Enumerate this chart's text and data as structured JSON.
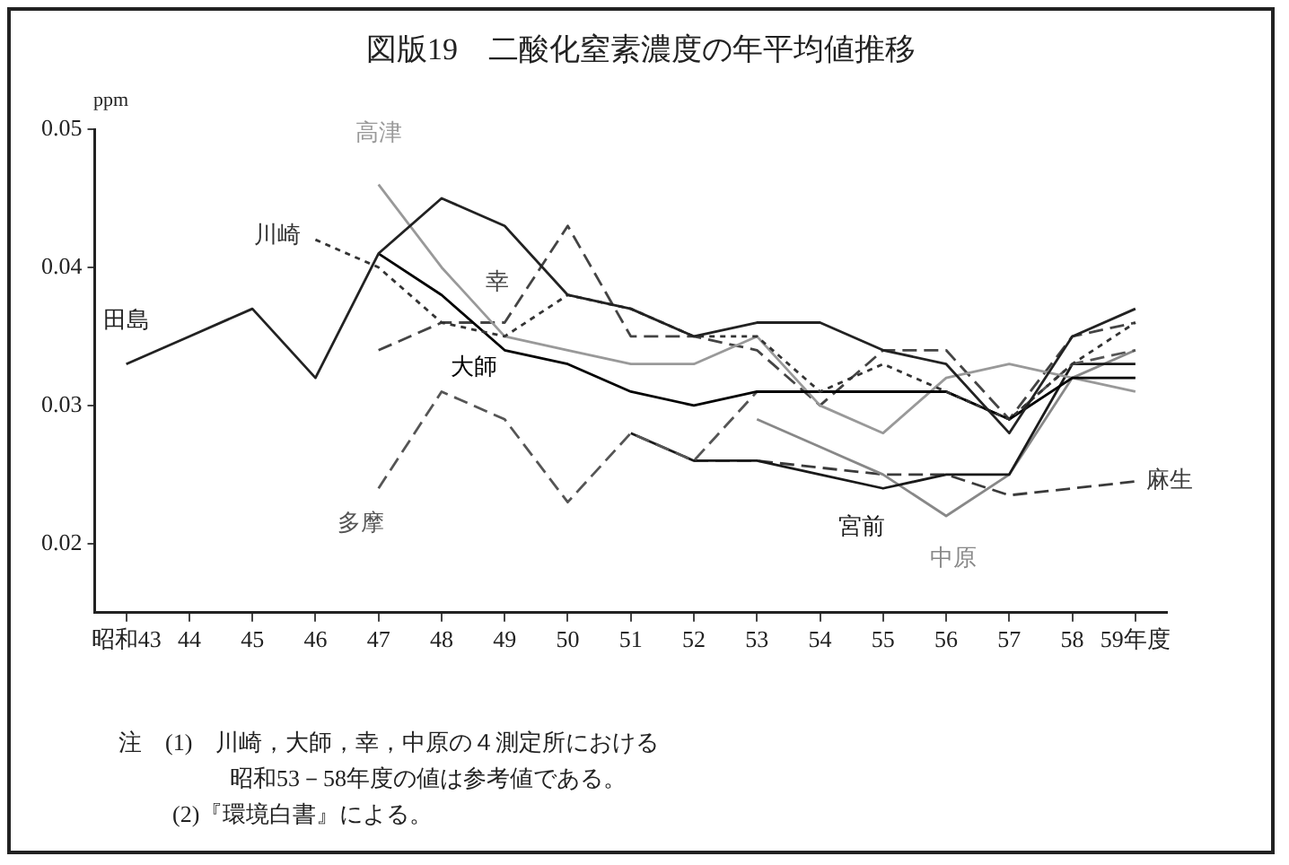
{
  "chart_data": {
    "type": "line",
    "title": "図版19　二酸化窒素濃度の年平均値推移",
    "ylabel": "ppm",
    "categories": [
      "昭和43",
      "44",
      "45",
      "46",
      "47",
      "48",
      "49",
      "50",
      "51",
      "52",
      "53",
      "54",
      "55",
      "56",
      "57",
      "58",
      "59年度"
    ],
    "ylim": [
      0.015,
      0.05
    ],
    "yticks": [
      0.02,
      0.03,
      0.04,
      0.05
    ],
    "grid": false,
    "legend": false,
    "marker": "none",
    "series": [
      {
        "name": "田島",
        "color": "#222222",
        "line_style": "solid",
        "values": [
          0.033,
          0.035,
          0.037,
          0.032,
          0.041,
          0.045,
          0.043,
          0.038,
          0.037,
          0.035,
          0.036,
          0.036,
          0.034,
          0.033,
          0.028,
          0.035,
          0.037
        ]
      },
      {
        "name": "川崎",
        "color": "#333333",
        "line_style": "dotted",
        "values": [
          null,
          null,
          null,
          0.042,
          0.04,
          0.036,
          0.035,
          0.038,
          0.037,
          0.035,
          0.035,
          0.031,
          0.033,
          0.031,
          0.029,
          0.033,
          0.036
        ]
      },
      {
        "name": "大師",
        "color": "#000000",
        "line_style": "solid",
        "values": [
          null,
          null,
          null,
          null,
          0.041,
          0.038,
          0.034,
          0.033,
          0.031,
          0.03,
          0.031,
          0.031,
          0.031,
          0.031,
          0.029,
          0.032,
          0.032
        ]
      },
      {
        "name": "高津",
        "color": "#999999",
        "line_style": "solid",
        "values": [
          null,
          null,
          null,
          null,
          0.046,
          0.04,
          0.035,
          0.034,
          0.033,
          0.033,
          0.035,
          0.03,
          0.028,
          0.032,
          0.033,
          0.032,
          0.031
        ]
      },
      {
        "name": "幸",
        "color": "#444444",
        "line_style": "dashed",
        "values": [
          null,
          null,
          null,
          null,
          0.034,
          0.036,
          0.036,
          0.043,
          0.035,
          0.035,
          0.034,
          0.03,
          0.034,
          0.034,
          0.029,
          0.035,
          0.036
        ]
      },
      {
        "name": "多摩",
        "color": "#555555",
        "line_style": "dashed",
        "values": [
          null,
          null,
          null,
          null,
          0.024,
          0.031,
          0.029,
          0.023,
          0.028,
          0.026,
          0.031,
          0.031,
          0.031,
          0.031,
          0.029,
          0.033,
          0.034
        ]
      },
      {
        "name": "宮前",
        "color": "#1a1a1a",
        "line_style": "solid",
        "values": [
          null,
          null,
          null,
          null,
          null,
          null,
          null,
          null,
          0.028,
          0.026,
          0.026,
          0.025,
          0.024,
          0.025,
          0.025,
          0.033,
          0.033
        ]
      },
      {
        "name": "中原",
        "color": "#888888",
        "line_style": "solid",
        "values": [
          null,
          null,
          null,
          null,
          null,
          null,
          null,
          null,
          null,
          null,
          0.029,
          0.027,
          0.025,
          0.022,
          0.025,
          0.032,
          0.034
        ]
      },
      {
        "name": "麻生",
        "color": "#3a3a3a",
        "line_style": "dashed",
        "values": [
          null,
          null,
          null,
          null,
          null,
          null,
          null,
          null,
          null,
          0.026,
          0.026,
          0.0255,
          0.025,
          0.025,
          0.0235,
          0.024,
          0.0245
        ]
      }
    ],
    "annotations": [
      "注　(1)　川崎，大師，幸，中原の４測定所における",
      "昭和53－58年度の値は参考値である。",
      "(2)『環境白書』による。"
    ]
  }
}
